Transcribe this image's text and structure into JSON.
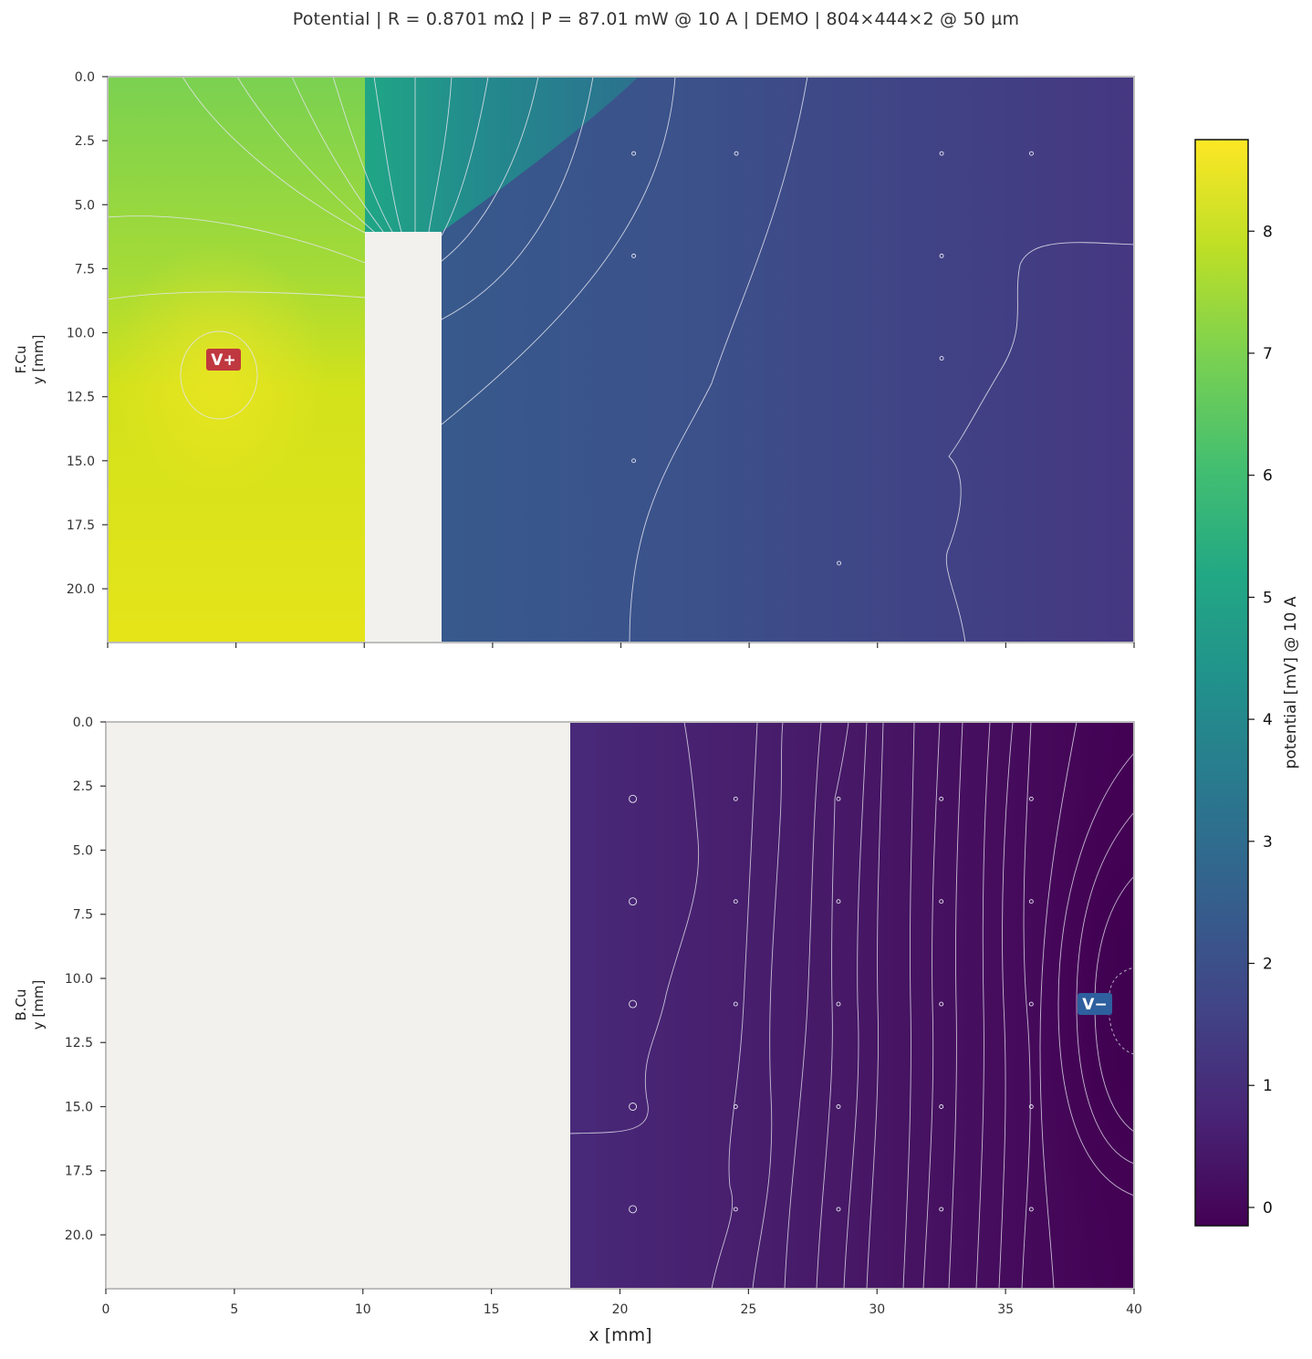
{
  "title": "Potential  |  R = 0.8701 mΩ  |  P = 87.01 mW @ 10 A  |  DEMO  |  804×444×2 @ 50 µm",
  "colors": {
    "background_copper_absent": "#f2f1ee",
    "axes_frame": "#bdbdbd",
    "contour": "#e6e6f0",
    "v_plus": "#c0383f",
    "v_minus": "#2e5f9e"
  },
  "colorbar": {
    "label": "potential [mV] @ 10 A",
    "colormap": "viridis",
    "range": [
      -0.15,
      8.75
    ],
    "ticks": [
      "0",
      "1",
      "2",
      "3",
      "4",
      "5",
      "6",
      "7",
      "8"
    ]
  },
  "chart_data": [
    {
      "type": "heatmap",
      "layer": "F.Cu",
      "title": "",
      "xlabel": "",
      "ylabel_line1": "F.Cu",
      "ylabel_line2": "y [mm]",
      "xlim": [
        0,
        40
      ],
      "ylim": [
        22.1,
        0
      ],
      "xticks": [
        0,
        5,
        10,
        15,
        20,
        25,
        30,
        35,
        40
      ],
      "xtick_labels_visible": false,
      "yticks": [
        "0.0",
        "2.5",
        "5.0",
        "7.5",
        "10.0",
        "12.5",
        "15.0",
        "17.5",
        "20.0"
      ],
      "copper_voids": [
        {
          "x": [
            10,
            13
          ],
          "y": [
            6,
            22.1
          ]
        }
      ],
      "terminal": {
        "label": "V+",
        "x": 4.5,
        "y": 11.0,
        "potential_mV": 8.75
      },
      "field_mV": {
        "v_plus_region": 8.5,
        "top_notch": 4.7,
        "x_13": 2.1,
        "x_40": 1.1
      },
      "vias": [
        [
          20.5,
          3
        ],
        [
          24.5,
          3
        ],
        [
          32.5,
          3
        ],
        [
          36,
          3
        ],
        [
          20.5,
          7
        ],
        [
          32.5,
          7
        ],
        [
          32.5,
          11
        ],
        [
          20.5,
          15
        ],
        [
          28.5,
          19
        ]
      ]
    },
    {
      "type": "heatmap",
      "layer": "B.Cu",
      "title": "",
      "xlabel": "x [mm]",
      "ylabel_line1": "B.Cu",
      "ylabel_line2": "y [mm]",
      "xlim": [
        0,
        40
      ],
      "ylim": [
        22.1,
        0
      ],
      "xticks": [
        "0",
        "5",
        "10",
        "15",
        "20",
        "25",
        "30",
        "35",
        "40"
      ],
      "yticks": [
        "0.0",
        "2.5",
        "5.0",
        "7.5",
        "10.0",
        "12.5",
        "15.0",
        "17.5",
        "20.0"
      ],
      "copper_voids": [
        {
          "x": [
            0,
            18
          ],
          "y": [
            0,
            22.1
          ]
        }
      ],
      "terminal": {
        "label": "V−",
        "x": 38.5,
        "y": 11.0,
        "potential_mV": 0.0
      },
      "field_mV": {
        "x_18": 0.95,
        "x_40": 0.05
      },
      "vias": [
        [
          20.5,
          3
        ],
        [
          24.5,
          3
        ],
        [
          28.5,
          3
        ],
        [
          32.5,
          3
        ],
        [
          36,
          3
        ],
        [
          20.5,
          7
        ],
        [
          24.5,
          7
        ],
        [
          28.5,
          7
        ],
        [
          32.5,
          7
        ],
        [
          36,
          7
        ],
        [
          20.5,
          11
        ],
        [
          24.5,
          11
        ],
        [
          28.5,
          11
        ],
        [
          32.5,
          11
        ],
        [
          36,
          11
        ],
        [
          20.5,
          15
        ],
        [
          24.5,
          15
        ],
        [
          28.5,
          15
        ],
        [
          32.5,
          15
        ],
        [
          36,
          15
        ],
        [
          20.5,
          19
        ],
        [
          24.5,
          19
        ],
        [
          28.5,
          19
        ],
        [
          32.5,
          19
        ],
        [
          36,
          19
        ]
      ]
    }
  ]
}
